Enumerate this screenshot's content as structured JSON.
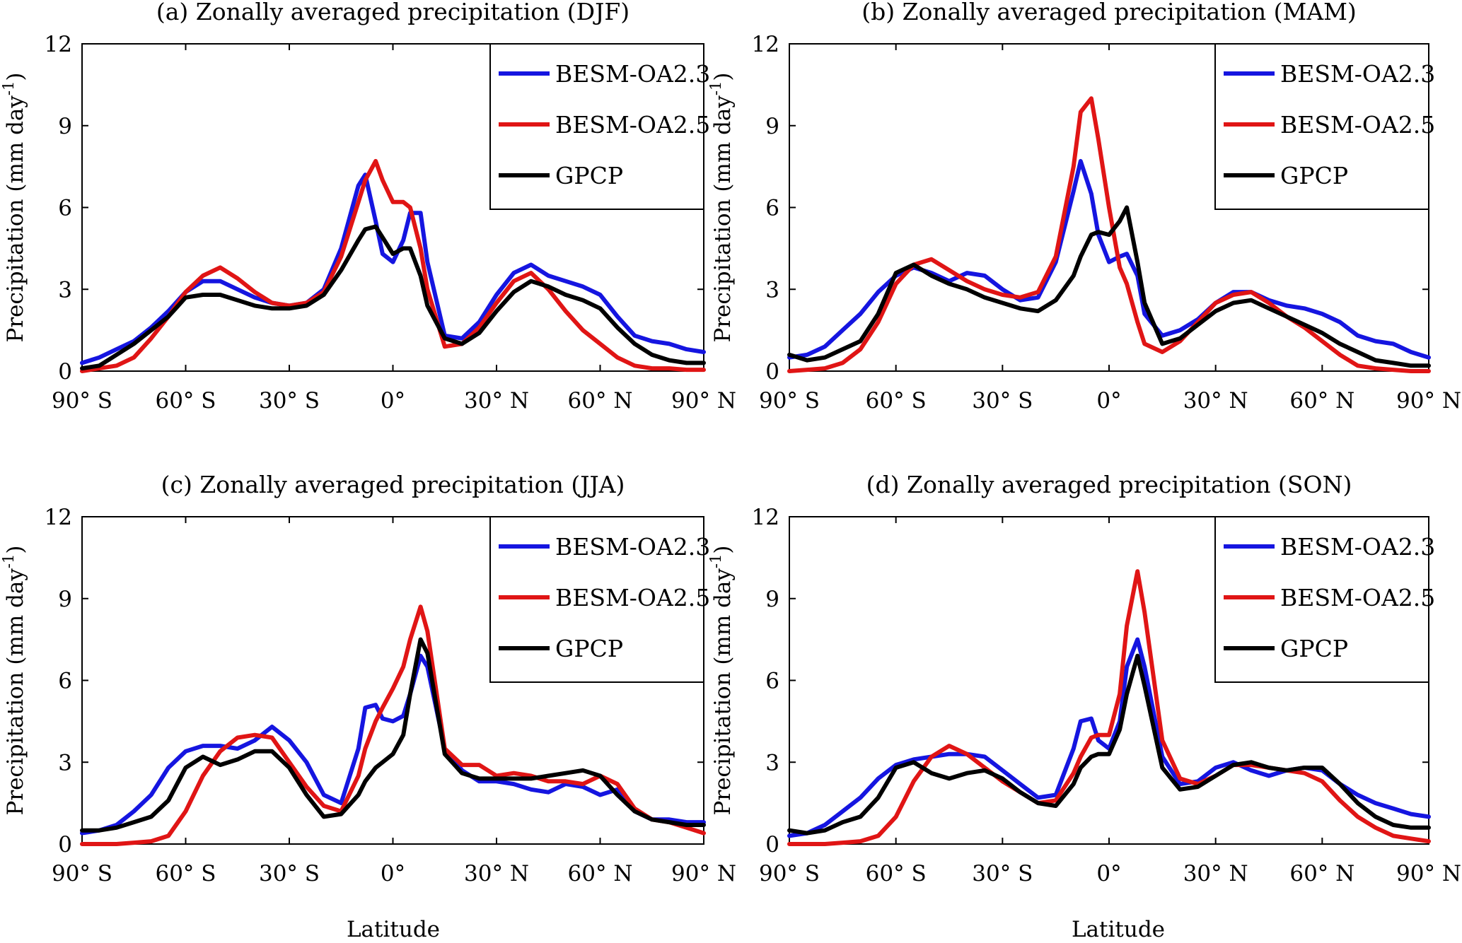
{
  "figure": {
    "ylabel": "Precipitation (mm day",
    "ylabel_superscript": "-1",
    "ylabel_close": ")",
    "xlabel": "Latitude"
  },
  "chart_data": [
    {
      "type": "line",
      "title": "(a) Zonally averaged precipitation (DJF)",
      "xlim": [
        -90,
        90
      ],
      "ylim": [
        0,
        12
      ],
      "yticks": [
        "0",
        "3",
        "6",
        "9",
        "12"
      ],
      "xticks": [
        "90° S",
        "60° S",
        "30° S",
        "0°",
        "30° N",
        "60° N",
        "90° N"
      ],
      "legend_position": "top-right",
      "x": [
        -90,
        -85,
        -80,
        -75,
        -70,
        -65,
        -60,
        -55,
        -50,
        -45,
        -40,
        -35,
        -30,
        -25,
        -20,
        -15,
        -10,
        -8,
        -5,
        -3,
        0,
        3,
        5,
        8,
        10,
        15,
        20,
        25,
        30,
        35,
        40,
        45,
        50,
        55,
        60,
        65,
        70,
        75,
        80,
        85,
        90
      ],
      "series": [
        {
          "name": "BESM-OA2.3",
          "color": "#1515e0",
          "values": [
            0.3,
            0.5,
            0.8,
            1.1,
            1.6,
            2.2,
            2.9,
            3.3,
            3.3,
            3.0,
            2.7,
            2.5,
            2.4,
            2.5,
            3.0,
            4.5,
            6.8,
            7.2,
            5.5,
            4.3,
            4.0,
            4.8,
            5.8,
            5.8,
            4.0,
            1.3,
            1.2,
            1.8,
            2.8,
            3.6,
            3.9,
            3.5,
            3.3,
            3.1,
            2.8,
            2.0,
            1.3,
            1.1,
            1.0,
            0.8,
            0.7
          ]
        },
        {
          "name": "BESM-OA2.5",
          "color": "#e01515",
          "values": [
            0.0,
            0.1,
            0.2,
            0.5,
            1.2,
            2.0,
            2.9,
            3.5,
            3.8,
            3.4,
            2.9,
            2.5,
            2.4,
            2.5,
            2.9,
            4.2,
            6.2,
            7.0,
            7.7,
            7.0,
            6.2,
            6.2,
            6.0,
            4.5,
            3.0,
            0.9,
            1.0,
            1.6,
            2.5,
            3.3,
            3.6,
            3.0,
            2.2,
            1.5,
            1.0,
            0.5,
            0.2,
            0.1,
            0.1,
            0.05,
            0.05
          ]
        },
        {
          "name": "GPCP",
          "color": "#000000",
          "values": [
            0.1,
            0.2,
            0.6,
            1.0,
            1.5,
            2.0,
            2.7,
            2.8,
            2.8,
            2.6,
            2.4,
            2.3,
            2.3,
            2.4,
            2.8,
            3.7,
            4.8,
            5.2,
            5.3,
            4.9,
            4.3,
            4.5,
            4.5,
            3.5,
            2.4,
            1.2,
            1.0,
            1.4,
            2.2,
            2.9,
            3.3,
            3.1,
            2.8,
            2.6,
            2.3,
            1.6,
            1.0,
            0.6,
            0.4,
            0.3,
            0.3
          ]
        }
      ]
    },
    {
      "type": "line",
      "title": "(b) Zonally averaged precipitation (MAM)",
      "xlim": [
        -90,
        90
      ],
      "ylim": [
        0,
        12
      ],
      "yticks": [
        "0",
        "3",
        "6",
        "9",
        "12"
      ],
      "xticks": [
        "90° S",
        "60° S",
        "30° S",
        "0°",
        "30° N",
        "60° N",
        "90° N"
      ],
      "legend_position": "top-right",
      "x": [
        -90,
        -85,
        -80,
        -75,
        -70,
        -65,
        -60,
        -55,
        -50,
        -45,
        -40,
        -35,
        -30,
        -25,
        -20,
        -15,
        -10,
        -8,
        -5,
        -3,
        0,
        3,
        5,
        8,
        10,
        15,
        20,
        25,
        30,
        35,
        40,
        45,
        50,
        55,
        60,
        65,
        70,
        75,
        80,
        85,
        90
      ],
      "series": [
        {
          "name": "BESM-OA2.3",
          "color": "#1515e0",
          "values": [
            0.5,
            0.6,
            0.9,
            1.5,
            2.1,
            2.9,
            3.5,
            3.8,
            3.6,
            3.3,
            3.6,
            3.5,
            3.0,
            2.6,
            2.7,
            4.0,
            6.6,
            7.7,
            6.5,
            5.0,
            4.0,
            4.2,
            4.3,
            3.5,
            2.1,
            1.3,
            1.5,
            1.9,
            2.5,
            2.9,
            2.9,
            2.6,
            2.4,
            2.3,
            2.1,
            1.8,
            1.3,
            1.1,
            1.0,
            0.7,
            0.5
          ]
        },
        {
          "name": "BESM-OA2.5",
          "color": "#e01515",
          "values": [
            0.0,
            0.05,
            0.1,
            0.3,
            0.8,
            1.8,
            3.2,
            3.9,
            4.1,
            3.7,
            3.3,
            3.0,
            2.8,
            2.7,
            2.9,
            4.2,
            7.5,
            9.5,
            10.0,
            8.5,
            6.0,
            3.8,
            3.2,
            1.8,
            1.0,
            0.7,
            1.1,
            1.8,
            2.5,
            2.8,
            2.9,
            2.5,
            2.0,
            1.6,
            1.1,
            0.6,
            0.2,
            0.1,
            0.05,
            0.0,
            0.0
          ]
        },
        {
          "name": "GPCP",
          "color": "#000000",
          "values": [
            0.6,
            0.4,
            0.5,
            0.8,
            1.1,
            2.1,
            3.6,
            3.9,
            3.5,
            3.2,
            3.0,
            2.7,
            2.5,
            2.3,
            2.2,
            2.6,
            3.5,
            4.2,
            5.0,
            5.1,
            5.0,
            5.5,
            6.0,
            4.0,
            2.5,
            1.0,
            1.2,
            1.7,
            2.2,
            2.5,
            2.6,
            2.3,
            2.0,
            1.7,
            1.4,
            1.0,
            0.7,
            0.4,
            0.3,
            0.2,
            0.2
          ]
        }
      ]
    },
    {
      "type": "line",
      "title": "(c) Zonally averaged precipitation (JJA)",
      "xlim": [
        -90,
        90
      ],
      "ylim": [
        0,
        12
      ],
      "yticks": [
        "0",
        "3",
        "6",
        "9",
        "12"
      ],
      "xticks": [
        "90° S",
        "60° S",
        "30° S",
        "0°",
        "30° N",
        "60° N",
        "90° N"
      ],
      "legend_position": "top-right",
      "x": [
        -90,
        -85,
        -80,
        -75,
        -70,
        -65,
        -60,
        -55,
        -50,
        -45,
        -40,
        -35,
        -30,
        -25,
        -20,
        -15,
        -10,
        -8,
        -5,
        -3,
        0,
        3,
        5,
        8,
        10,
        15,
        20,
        25,
        30,
        35,
        40,
        45,
        50,
        55,
        60,
        65,
        70,
        75,
        80,
        85,
        90
      ],
      "series": [
        {
          "name": "BESM-OA2.3",
          "color": "#1515e0",
          "values": [
            0.4,
            0.5,
            0.7,
            1.2,
            1.8,
            2.8,
            3.4,
            3.6,
            3.6,
            3.5,
            3.8,
            4.3,
            3.8,
            3.0,
            1.8,
            1.5,
            3.5,
            5.0,
            5.1,
            4.6,
            4.5,
            4.7,
            5.5,
            6.9,
            6.5,
            3.5,
            2.7,
            2.3,
            2.3,
            2.2,
            2.0,
            1.9,
            2.2,
            2.1,
            1.8,
            2.0,
            1.2,
            0.9,
            0.9,
            0.8,
            0.8
          ]
        },
        {
          "name": "BESM-OA2.5",
          "color": "#e01515",
          "values": [
            0.0,
            0.0,
            0.0,
            0.05,
            0.1,
            0.3,
            1.2,
            2.5,
            3.4,
            3.9,
            4.0,
            3.9,
            3.0,
            2.1,
            1.4,
            1.2,
            2.5,
            3.5,
            4.5,
            5.0,
            5.7,
            6.5,
            7.5,
            8.7,
            7.8,
            3.5,
            2.9,
            2.9,
            2.5,
            2.6,
            2.5,
            2.3,
            2.3,
            2.2,
            2.5,
            2.2,
            1.3,
            0.9,
            0.8,
            0.6,
            0.4
          ]
        },
        {
          "name": "GPCP",
          "color": "#000000",
          "values": [
            0.5,
            0.5,
            0.6,
            0.8,
            1.0,
            1.6,
            2.8,
            3.2,
            2.9,
            3.1,
            3.4,
            3.4,
            2.8,
            1.8,
            1.0,
            1.1,
            1.8,
            2.3,
            2.8,
            3.0,
            3.3,
            4.0,
            5.5,
            7.5,
            7.0,
            3.3,
            2.6,
            2.4,
            2.4,
            2.4,
            2.4,
            2.5,
            2.6,
            2.7,
            2.5,
            1.8,
            1.2,
            0.9,
            0.8,
            0.7,
            0.7
          ]
        }
      ]
    },
    {
      "type": "line",
      "title": "(d) Zonally averaged precipitation (SON)",
      "xlim": [
        -90,
        90
      ],
      "ylim": [
        0,
        12
      ],
      "yticks": [
        "0",
        "3",
        "6",
        "9",
        "12"
      ],
      "xticks": [
        "90° S",
        "60° S",
        "30° S",
        "0°",
        "30° N",
        "60° N",
        "90° N"
      ],
      "legend_position": "top-right",
      "x": [
        -90,
        -85,
        -80,
        -75,
        -70,
        -65,
        -60,
        -55,
        -50,
        -45,
        -40,
        -35,
        -30,
        -25,
        -20,
        -15,
        -10,
        -8,
        -5,
        -3,
        0,
        3,
        5,
        8,
        10,
        15,
        20,
        25,
        30,
        35,
        40,
        45,
        50,
        55,
        60,
        65,
        70,
        75,
        80,
        85,
        90
      ],
      "series": [
        {
          "name": "BESM-OA2.3",
          "color": "#1515e0",
          "values": [
            0.3,
            0.4,
            0.7,
            1.2,
            1.7,
            2.4,
            2.9,
            3.1,
            3.2,
            3.3,
            3.3,
            3.2,
            2.7,
            2.2,
            1.7,
            1.8,
            3.5,
            4.5,
            4.6,
            3.8,
            3.5,
            4.5,
            6.5,
            7.5,
            6.5,
            3.2,
            2.2,
            2.3,
            2.8,
            3.0,
            2.7,
            2.5,
            2.7,
            2.8,
            2.7,
            2.2,
            1.8,
            1.5,
            1.3,
            1.1,
            1.0
          ]
        },
        {
          "name": "BESM-OA2.5",
          "color": "#e01515",
          "values": [
            0.0,
            0.0,
            0.0,
            0.05,
            0.1,
            0.3,
            1.0,
            2.3,
            3.2,
            3.6,
            3.3,
            2.8,
            2.3,
            1.9,
            1.5,
            1.6,
            2.6,
            3.2,
            3.9,
            4.0,
            4.0,
            5.5,
            8.0,
            10.0,
            8.5,
            3.8,
            2.4,
            2.2,
            2.5,
            2.9,
            2.9,
            2.8,
            2.7,
            2.6,
            2.3,
            1.6,
            1.0,
            0.6,
            0.3,
            0.2,
            0.1
          ]
        },
        {
          "name": "GPCP",
          "color": "#000000",
          "values": [
            0.5,
            0.4,
            0.5,
            0.8,
            1.0,
            1.7,
            2.8,
            3.0,
            2.6,
            2.4,
            2.6,
            2.7,
            2.4,
            1.9,
            1.5,
            1.4,
            2.2,
            2.8,
            3.2,
            3.3,
            3.3,
            4.2,
            5.5,
            6.9,
            5.8,
            2.8,
            2.0,
            2.1,
            2.5,
            2.9,
            3.0,
            2.8,
            2.7,
            2.8,
            2.8,
            2.2,
            1.5,
            1.0,
            0.7,
            0.6,
            0.6
          ]
        }
      ]
    }
  ]
}
